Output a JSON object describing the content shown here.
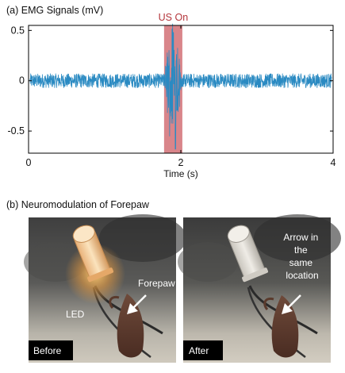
{
  "panel_a": {
    "caption": "(a) EMG Signals (mV)",
    "annotation": "US On"
  },
  "chart_data": {
    "type": "line",
    "title": "",
    "xlabel": "Time (s)",
    "ylabel": "",
    "xlim": [
      0,
      4
    ],
    "ylim": [
      -0.72,
      0.55
    ],
    "xticks": [
      "0",
      "2",
      "4"
    ],
    "yticks": [
      "0.5",
      "0",
      "-0.5"
    ],
    "highlight": {
      "label": "US On",
      "x_start": 1.78,
      "x_end": 2.02,
      "color": "#d9858a"
    },
    "series": [
      {
        "color": "#2a8ac2",
        "noise_amplitude_mV": 0.07,
        "x_start": 0.02,
        "x_end": 3.98,
        "baseline": [
          {
            "x": 0.0,
            "y": 0.0
          },
          {
            "x": 1.0,
            "y": 0.0
          },
          {
            "x": 2.0,
            "y": 0.0
          },
          {
            "x": 3.0,
            "y": 0.0
          },
          {
            "x": 4.0,
            "y": 0.0
          }
        ],
        "burst": {
          "x_start": 1.78,
          "x_end": 2.05,
          "max": 0.48,
          "min": -0.68
        }
      }
    ],
    "grid": false,
    "legend": "none"
  },
  "panel_b": {
    "caption": "(b) Neuromodulation of Forepaw",
    "before": {
      "badge": "Before",
      "led_label": "LED",
      "forepaw_label": "Forepaw"
    },
    "after": {
      "badge": "After",
      "arrow_label_lines": [
        "Arrow in",
        "the",
        "same",
        "location"
      ]
    }
  }
}
